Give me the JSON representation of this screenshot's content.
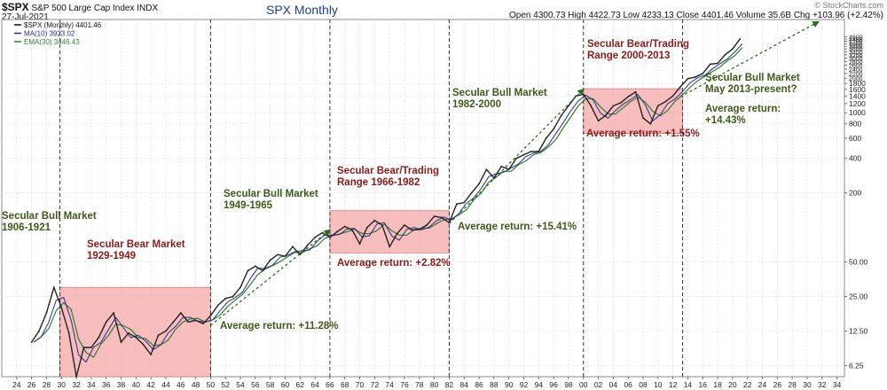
{
  "header": {
    "symbol": "$SPX",
    "description": "S&P 500 Large Cap Index  INDX",
    "date": "27-Jul-2021",
    "chart_title": "SPX Monthly",
    "quote": "Open 4300.73  High 4422.73  Low 4233.13  Close 4401.46  Volume 35.6B  Chg +103.96 (+2.42%)",
    "watermark": "© StockCharts.com",
    "legend": [
      {
        "text": "$SPX (Monthly) 4401.46",
        "color": "#111111",
        "icon": "price-bar-icon"
      },
      {
        "text": "MA(10) 3923.02",
        "color": "#1f2f8f",
        "icon": "line-icon"
      },
      {
        "text": "EMA(30) 3446.43",
        "color": "#2e7d32",
        "icon": "line-icon"
      }
    ]
  },
  "colors": {
    "bull_text": "#3d5a18",
    "bear_text": "#8b1a1a",
    "bear_fill": "#f6a8a8",
    "bear_stroke": "#d87a7a",
    "trend_line": "#2e6b1f",
    "price": "#222222",
    "ma": "#1f2f8f",
    "ema": "#2e7d32"
  },
  "chart_data": {
    "type": "line",
    "title": "SPX Monthly",
    "y_scale": "log",
    "ylim": [
      5,
      6500
    ],
    "xlim": [
      1922,
      2035
    ],
    "x_tick_labels": [
      "24",
      "26",
      "28",
      "30",
      "32",
      "34",
      "36",
      "38",
      "40",
      "42",
      "44",
      "46",
      "48",
      "50",
      "52",
      "54",
      "56",
      "58",
      "60",
      "62",
      "64",
      "66",
      "68",
      "70",
      "72",
      "74",
      "76",
      "78",
      "80",
      "82",
      "84",
      "86",
      "88",
      "90",
      "92",
      "94",
      "96",
      "98",
      "00",
      "02",
      "04",
      "06",
      "08",
      "10",
      "12",
      "14",
      "16",
      "18",
      "20",
      "22",
      "24",
      "26",
      "28",
      "30",
      "32",
      "34"
    ],
    "y_tick_labels": [
      "6.25",
      "12.50",
      "25.00",
      "50.00",
      "200",
      "400",
      "600",
      "800",
      "1000",
      "1200",
      "1400",
      "1600",
      "1800",
      "2000",
      "2200",
      "2400",
      "2600",
      "2800",
      "3000",
      "3200",
      "3400",
      "3600",
      "3800",
      "4000",
      "4200",
      "4400",
      "4600"
    ],
    "series": [
      {
        "name": "$SPX (Monthly)",
        "points": [
          [
            1926,
            10
          ],
          [
            1927,
            12.5
          ],
          [
            1928,
            18
          ],
          [
            1929,
            30
          ],
          [
            1930,
            20
          ],
          [
            1931,
            12
          ],
          [
            1932,
            5
          ],
          [
            1933,
            9
          ],
          [
            1934,
            9
          ],
          [
            1935,
            11
          ],
          [
            1936,
            15
          ],
          [
            1937,
            18
          ],
          [
            1938,
            10
          ],
          [
            1939,
            12
          ],
          [
            1940,
            11
          ],
          [
            1941,
            9.5
          ],
          [
            1942,
            7.8
          ],
          [
            1943,
            11.5
          ],
          [
            1944,
            12.5
          ],
          [
            1945,
            15
          ],
          [
            1946,
            18
          ],
          [
            1947,
            15
          ],
          [
            1948,
            15.5
          ],
          [
            1949,
            14.5
          ],
          [
            1950,
            17
          ],
          [
            1951,
            21
          ],
          [
            1952,
            24
          ],
          [
            1953,
            25
          ],
          [
            1954,
            30
          ],
          [
            1955,
            42
          ],
          [
            1956,
            46
          ],
          [
            1957,
            42
          ],
          [
            1958,
            52
          ],
          [
            1959,
            58
          ],
          [
            1960,
            56
          ],
          [
            1961,
            68
          ],
          [
            1962,
            58
          ],
          [
            1963,
            70
          ],
          [
            1964,
            82
          ],
          [
            1965,
            90
          ],
          [
            1966,
            82
          ],
          [
            1967,
            92
          ],
          [
            1968,
            102
          ],
          [
            1969,
            95
          ],
          [
            1970,
            72
          ],
          [
            1971,
            100
          ],
          [
            1972,
            115
          ],
          [
            1973,
            105
          ],
          [
            1974,
            68
          ],
          [
            1975,
            88
          ],
          [
            1976,
            105
          ],
          [
            1977,
            95
          ],
          [
            1978,
            96
          ],
          [
            1979,
            105
          ],
          [
            1980,
            125
          ],
          [
            1981,
            122
          ],
          [
            1982,
            110
          ],
          [
            1983,
            160
          ],
          [
            1984,
            165
          ],
          [
            1985,
            200
          ],
          [
            1986,
            240
          ],
          [
            1987,
            320
          ],
          [
            1988,
            270
          ],
          [
            1989,
            340
          ],
          [
            1990,
            320
          ],
          [
            1991,
            400
          ],
          [
            1992,
            430
          ],
          [
            1993,
            460
          ],
          [
            1994,
            460
          ],
          [
            1995,
            600
          ],
          [
            1996,
            720
          ],
          [
            1997,
            940
          ],
          [
            1998,
            1150
          ],
          [
            1999,
            1400
          ],
          [
            2000,
            1450
          ],
          [
            2001,
            1150
          ],
          [
            2002,
            850
          ],
          [
            2003,
            950
          ],
          [
            2004,
            1150
          ],
          [
            2005,
            1220
          ],
          [
            2006,
            1380
          ],
          [
            2007,
            1520
          ],
          [
            2008,
            900
          ],
          [
            2009,
            800
          ],
          [
            2010,
            1150
          ],
          [
            2011,
            1250
          ],
          [
            2012,
            1400
          ],
          [
            2013,
            1680
          ],
          [
            2014,
            1980
          ],
          [
            2015,
            2050
          ],
          [
            2016,
            2200
          ],
          [
            2017,
            2650
          ],
          [
            2018,
            2700
          ],
          [
            2019,
            3200
          ],
          [
            2020,
            3600
          ],
          [
            2021,
            4401.46
          ]
        ]
      },
      {
        "name": "MA(10)",
        "last": 3923.02
      },
      {
        "name": "EMA(30)",
        "last": 3446.43
      }
    ],
    "regimes": [
      {
        "type": "bull",
        "label": "Secular Bull Market\n1906-1921",
        "start": null,
        "end": null,
        "avg_return": ""
      },
      {
        "type": "bear",
        "label": "Secular Bear Market\n1929-1949",
        "start": 1929.8,
        "end": 1950.0,
        "low": 5,
        "high": 30,
        "avg_return": ""
      },
      {
        "type": "bull",
        "label": "Secular Bull Market\n1949-1965",
        "start": 1950.0,
        "end": 1966.0,
        "avg_return": "Average return:  +11.28%"
      },
      {
        "type": "bear",
        "label": "Secular Bear/Trading\nRange 1966-1982",
        "start": 1966.0,
        "end": 1982.0,
        "low": 60,
        "high": 140,
        "avg_return": "Average return:  +2.82%"
      },
      {
        "type": "bull",
        "label": "Secular Bull Market\n1982-2000",
        "start": 1982.0,
        "end": 2000.0,
        "avg_return": "Average return:  +15.41%"
      },
      {
        "type": "bear",
        "label": "Secular Bear/Trading\nRange  2000-2013",
        "start": 2000.0,
        "end": 2013.3,
        "low": 660,
        "high": 1620,
        "avg_return": "Average return:  +1.55%"
      },
      {
        "type": "bull",
        "label": "Secular Bull Market\nMay 2013-present?",
        "start": 2013.3,
        "end": null,
        "avg_return": "Average return:\n+14.43%"
      }
    ],
    "trend_lines": [
      {
        "from": [
          1950,
          14
        ],
        "to": [
          1966,
          95
        ]
      },
      {
        "from": [
          1982,
          108
        ],
        "to": [
          2000,
          1600
        ]
      },
      {
        "from": [
          2013,
          1380
        ],
        "to": [
          2031.5,
          6200
        ]
      }
    ],
    "cycle_dividers": [
      1929.8,
      1950.0,
      1966.0,
      1982.0,
      2000.0,
      2013.3
    ]
  }
}
